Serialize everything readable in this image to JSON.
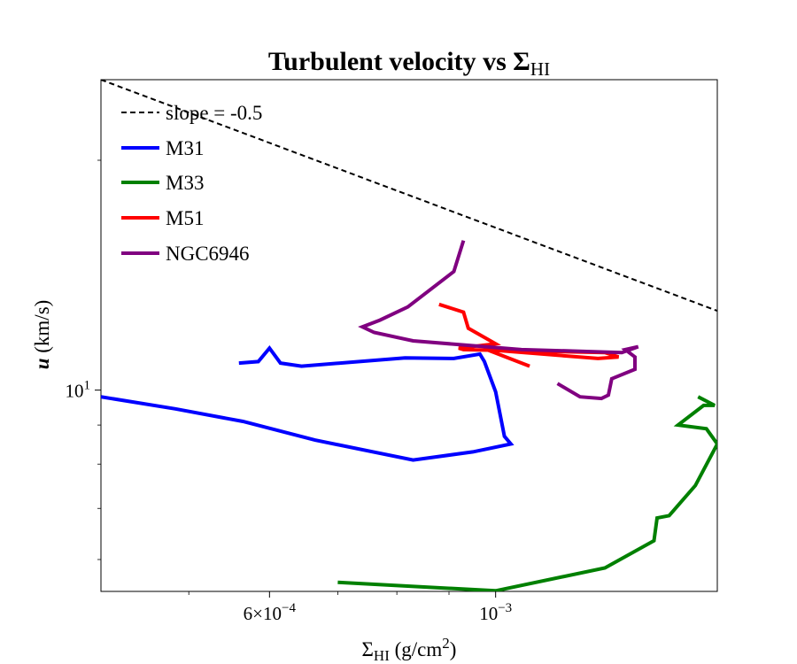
{
  "chart_data": {
    "type": "line",
    "title": "Turbulent velocity vs Σ",
    "title_subscript": "HI",
    "xlabel": "Σ",
    "xlabel_subscript": "HI",
    "xlabel_unit": " (g/cm",
    "xlabel_unit_sup": "2",
    "xlabel_unit_end": ")",
    "ylabel": "u",
    "ylabel_unit": " (km/s)",
    "xscale": "log",
    "yscale": "log",
    "xlim": [
      0.00041,
      0.00165
    ],
    "ylim": [
      5.45,
      25.5
    ],
    "legend_position": "upper-left",
    "x_tick_labels": [
      {
        "value": 0.0006,
        "mantissa": "6×10",
        "exponent": "−4"
      },
      {
        "value": 0.001,
        "mantissa": "10",
        "exponent": "−3"
      }
    ],
    "y_tick_labels": [
      {
        "value": 10,
        "mantissa": "10",
        "exponent": "1"
      }
    ],
    "x_minor_ticks": [
      0.0005,
      0.0007,
      0.0008,
      0.0009
    ],
    "y_minor_ticks": [
      6,
      7,
      8,
      9,
      20
    ],
    "reference_line": {
      "name": "slope = -0.5",
      "slope": -0.5,
      "x": [
        0.00041,
        0.00165
      ],
      "y": [
        25.5,
        12.7
      ],
      "color": "#000000"
    },
    "series": [
      {
        "name": "M31",
        "color": "#0000ff",
        "x": [
          0.00041,
          0.000485,
          0.000565,
          0.000665,
          0.00083,
          0.00095,
          0.001035,
          0.00102,
          0.001,
          0.000975,
          0.000965,
          0.00091,
          0.000815,
          0.000735,
          0.000645,
          0.000615,
          0.0006,
          0.000585,
          0.00056
        ],
        "y": [
          9.8,
          9.45,
          9.1,
          8.6,
          8.1,
          8.3,
          8.5,
          8.7,
          9.95,
          10.9,
          11.15,
          11.0,
          11.02,
          10.9,
          10.75,
          10.85,
          11.35,
          10.9,
          10.85
        ],
        "color_hex": "#0000ff"
      },
      {
        "name": "M33",
        "color": "#008000",
        "x": [
          0.0007,
          0.001,
          0.00128,
          0.00143,
          0.00144,
          0.00148,
          0.00157,
          0.00165,
          0.00161,
          0.00151,
          0.0016,
          0.00164,
          0.00158
        ],
        "y": [
          5.6,
          5.46,
          5.85,
          6.35,
          6.8,
          6.85,
          7.5,
          8.5,
          8.9,
          9.0,
          9.55,
          9.55,
          9.8
        ],
        "color_hex": "#008000"
      },
      {
        "name": "M51",
        "color": "#ff0000",
        "x": [
          0.00088,
          0.00093,
          0.00094,
          0.001,
          0.00092,
          0.00093,
          0.00128,
          0.00132,
          0.00126,
          0.00098,
          0.00108
        ],
        "y": [
          12.95,
          12.65,
          12.05,
          11.5,
          11.35,
          11.3,
          11.2,
          11.05,
          11.0,
          11.3,
          10.75
        ],
        "color_hex": "#ff0000"
      },
      {
        "name": "NGC6946",
        "color": "#800080",
        "x": [
          0.00115,
          0.00121,
          0.00127,
          0.00129,
          0.0013,
          0.00137,
          0.00137,
          0.00134,
          0.00138,
          0.00133,
          0.00119,
          0.00106,
          0.00083,
          0.00076,
          0.00074,
          0.00077,
          0.00082,
          0.00091,
          0.00093
        ],
        "y": [
          10.2,
          9.8,
          9.75,
          9.85,
          10.35,
          10.65,
          11.05,
          11.3,
          11.4,
          11.2,
          11.25,
          11.3,
          11.6,
          11.9,
          12.1,
          12.35,
          12.85,
          14.3,
          15.7
        ],
        "color_hex": "#800080"
      }
    ]
  }
}
